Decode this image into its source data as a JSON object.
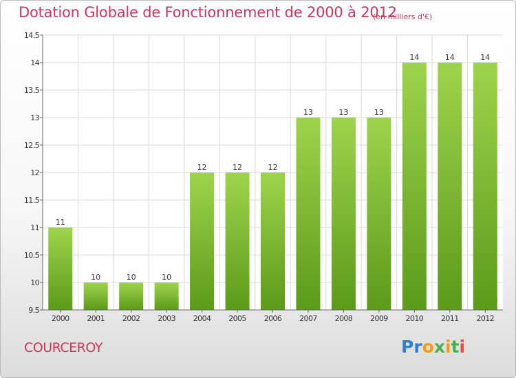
{
  "header": {
    "title": "Dotation Globale de Fonctionnement de 2000 à 2012",
    "subtitle": "(en milliers d'€)"
  },
  "footer": {
    "commune": "COURCEROY",
    "logo_text": "Proxiti",
    "logo_colors": [
      "#2e7fd1",
      "#2e7fd1",
      "#f39c12",
      "#4caf50",
      "#f39c12",
      "#4caf50",
      "#e74c3c"
    ]
  },
  "colors": {
    "accent": "#c8365a",
    "bar_top": "#9ed44c",
    "bar_bottom": "#5c9a1a",
    "grid": "#d8d8d8"
  },
  "chart_data": {
    "type": "bar",
    "title": "Dotation Globale de Fonctionnement de 2000 à 2012",
    "subtitle": "(en milliers d'€)",
    "categories": [
      "2000",
      "2001",
      "2002",
      "2003",
      "2004",
      "2005",
      "2006",
      "2007",
      "2008",
      "2009",
      "2010",
      "2011",
      "2012"
    ],
    "values": [
      11,
      10,
      10,
      10,
      12,
      12,
      12,
      13,
      13,
      13,
      14,
      14,
      14
    ],
    "value_labels": [
      "11",
      "10",
      "10",
      "10",
      "12",
      "12",
      "12",
      "13",
      "13",
      "13",
      "14",
      "14",
      "14"
    ],
    "ylim": [
      9.5,
      14.5
    ],
    "yticks": [
      9.5,
      10,
      10.5,
      11,
      11.5,
      12,
      12.5,
      13,
      13.5,
      14,
      14.5
    ],
    "ytick_labels": [
      "9.5",
      "10",
      "10.5",
      "11",
      "11.5",
      "12",
      "12.5",
      "13",
      "13.5",
      "14",
      "14.5"
    ],
    "grid": true,
    "legend": "none"
  }
}
